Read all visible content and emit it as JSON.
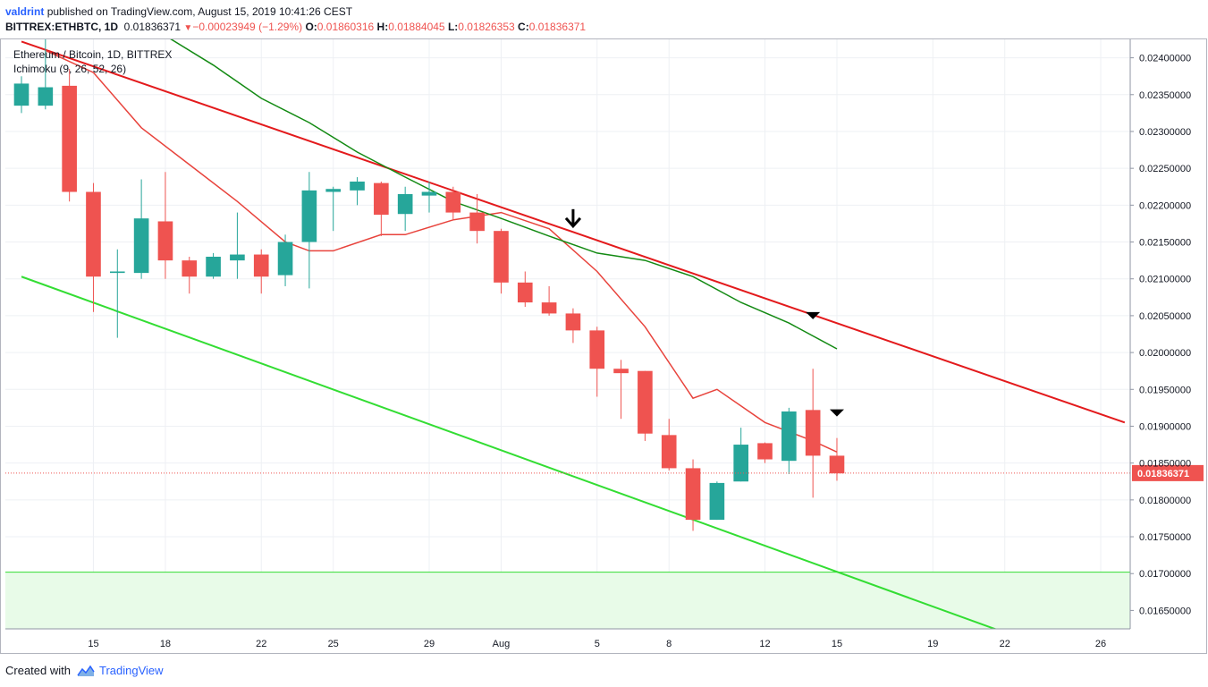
{
  "header": {
    "author": "valdrint",
    "published_text": "published on TradingView.com, August 15, 2019 10:41:26 CEST"
  },
  "symbol_line": {
    "symbol": "BITTREX:ETHBTC, 1D",
    "last": "0.01836371",
    "change": "−0.00023949 (−1.29%)",
    "o_label": "O:",
    "o_value": "0.01860316",
    "h_label": "H:",
    "h_value": "0.01884045",
    "l_label": "L:",
    "l_value": "0.01826353",
    "c_label": "C:",
    "c_value": "0.01836371"
  },
  "legend": {
    "title": "Ethereum / Bitcoin, 1D, BITTREX",
    "indicator": "Ichimoku (9, 26, 52, 26)"
  },
  "footer": {
    "created_with": "Created with",
    "brand": "TradingView"
  },
  "colors": {
    "up": "#26a69a",
    "down": "#ef5350",
    "resistance_line": "#e31a1c",
    "support_line": "#33dd33",
    "conversion_line": "#e8433c",
    "base_line": "#138a13",
    "support_zone": "#e8fbe8",
    "grid": "#eef0f4",
    "last_price_label": "#ef5350"
  },
  "chart_data": {
    "type": "candlestick",
    "title": "Ethereum / Bitcoin, 1D, BITTREX",
    "symbol": "BITTREX:ETHBTC",
    "interval": "1D",
    "ylim": [
      0.01625,
      0.02425
    ],
    "x_tick_labels": [
      "15",
      "18",
      "22",
      "25",
      "29",
      "Aug",
      "5",
      "8",
      "12",
      "15",
      "19",
      "22",
      "26"
    ],
    "y_tick_labels": [
      "0.02400000",
      "0.02350000",
      "0.02300000",
      "0.02250000",
      "0.02200000",
      "0.02150000",
      "0.02100000",
      "0.02050000",
      "0.02000000",
      "0.01950000",
      "0.01900000",
      "0.01850000",
      "0.01800000",
      "0.01750000",
      "0.01700000",
      "0.01650000"
    ],
    "last_price": 0.01836371,
    "last_price_label": "0.01836371",
    "grid": true,
    "x_range_dates": [
      "2019-07-12",
      "2019-08-27"
    ],
    "candles": [
      {
        "date": "2019-07-12",
        "o": 0.02335,
        "h": 0.02375,
        "l": 0.02325,
        "c": 0.02365
      },
      {
        "date": "2019-07-13",
        "o": 0.02335,
        "h": 0.0243,
        "l": 0.0233,
        "c": 0.0236
      },
      {
        "date": "2019-07-14",
        "o": 0.02362,
        "h": 0.02385,
        "l": 0.02205,
        "c": 0.02218
      },
      {
        "date": "2019-07-15",
        "o": 0.02218,
        "h": 0.0223,
        "l": 0.02055,
        "c": 0.02103
      },
      {
        "date": "2019-07-16",
        "o": 0.02108,
        "h": 0.0214,
        "l": 0.0202,
        "c": 0.0211
      },
      {
        "date": "2019-07-17",
        "o": 0.02108,
        "h": 0.02235,
        "l": 0.021,
        "c": 0.02182
      },
      {
        "date": "2019-07-18",
        "o": 0.02178,
        "h": 0.02245,
        "l": 0.021,
        "c": 0.02125
      },
      {
        "date": "2019-07-19",
        "o": 0.02125,
        "h": 0.0213,
        "l": 0.0208,
        "c": 0.02103
      },
      {
        "date": "2019-07-20",
        "o": 0.02103,
        "h": 0.02135,
        "l": 0.021,
        "c": 0.0213
      },
      {
        "date": "2019-07-21",
        "o": 0.02125,
        "h": 0.0219,
        "l": 0.021,
        "c": 0.02133
      },
      {
        "date": "2019-07-22",
        "o": 0.02133,
        "h": 0.0214,
        "l": 0.0208,
        "c": 0.02103
      },
      {
        "date": "2019-07-23",
        "o": 0.02105,
        "h": 0.0216,
        "l": 0.0209,
        "c": 0.0215
      },
      {
        "date": "2019-07-24",
        "o": 0.0215,
        "h": 0.02245,
        "l": 0.02087,
        "c": 0.0222
      },
      {
        "date": "2019-07-25",
        "o": 0.02218,
        "h": 0.02225,
        "l": 0.02165,
        "c": 0.02222
      },
      {
        "date": "2019-07-26",
        "o": 0.0222,
        "h": 0.02238,
        "l": 0.022,
        "c": 0.02232
      },
      {
        "date": "2019-07-27",
        "o": 0.0223,
        "h": 0.02232,
        "l": 0.02158,
        "c": 0.02187
      },
      {
        "date": "2019-07-28",
        "o": 0.02188,
        "h": 0.02225,
        "l": 0.02165,
        "c": 0.02215
      },
      {
        "date": "2019-07-29",
        "o": 0.02213,
        "h": 0.02232,
        "l": 0.0219,
        "c": 0.02218
      },
      {
        "date": "2019-07-30",
        "o": 0.02218,
        "h": 0.02225,
        "l": 0.0218,
        "c": 0.0219
      },
      {
        "date": "2019-07-31",
        "o": 0.0219,
        "h": 0.02215,
        "l": 0.02148,
        "c": 0.02165
      },
      {
        "date": "2019-08-01",
        "o": 0.02165,
        "h": 0.02168,
        "l": 0.0208,
        "c": 0.02095
      },
      {
        "date": "2019-08-02",
        "o": 0.02095,
        "h": 0.0211,
        "l": 0.02062,
        "c": 0.02068
      },
      {
        "date": "2019-08-03",
        "o": 0.02068,
        "h": 0.0209,
        "l": 0.0205,
        "c": 0.02053
      },
      {
        "date": "2019-08-04",
        "o": 0.02053,
        "h": 0.0206,
        "l": 0.02013,
        "c": 0.0203
      },
      {
        "date": "2019-08-05",
        "o": 0.0203,
        "h": 0.02035,
        "l": 0.0194,
        "c": 0.01978
      },
      {
        "date": "2019-08-06",
        "o": 0.01978,
        "h": 0.0199,
        "l": 0.0191,
        "c": 0.01972
      },
      {
        "date": "2019-08-07",
        "o": 0.01975,
        "h": 0.01975,
        "l": 0.0188,
        "c": 0.0189
      },
      {
        "date": "2019-08-08",
        "o": 0.01888,
        "h": 0.0191,
        "l": 0.0184,
        "c": 0.01843
      },
      {
        "date": "2019-08-09",
        "o": 0.01843,
        "h": 0.01855,
        "l": 0.01758,
        "c": 0.01773
      },
      {
        "date": "2019-08-10",
        "o": 0.01773,
        "h": 0.01825,
        "l": 0.01773,
        "c": 0.01823
      },
      {
        "date": "2019-08-11",
        "o": 0.01825,
        "h": 0.01898,
        "l": 0.01825,
        "c": 0.01875
      },
      {
        "date": "2019-08-12",
        "o": 0.01877,
        "h": 0.01878,
        "l": 0.0185,
        "c": 0.01855
      },
      {
        "date": "2019-08-13",
        "o": 0.01853,
        "h": 0.01925,
        "l": 0.01835,
        "c": 0.0192
      },
      {
        "date": "2019-08-14",
        "o": 0.01922,
        "h": 0.01978,
        "l": 0.01803,
        "c": 0.0186
      },
      {
        "date": "2019-08-15",
        "o": 0.0186,
        "h": 0.01884,
        "l": 0.01826,
        "c": 0.01836
      }
    ],
    "ichimoku_conversion": [
      {
        "date": "2019-07-13",
        "v": 0.0241
      },
      {
        "date": "2019-07-15",
        "v": 0.0238
      },
      {
        "date": "2019-07-17",
        "v": 0.02305
      },
      {
        "date": "2019-07-19",
        "v": 0.02255
      },
      {
        "date": "2019-07-21",
        "v": 0.02205
      },
      {
        "date": "2019-07-23",
        "v": 0.0215
      },
      {
        "date": "2019-07-24",
        "v": 0.02138
      },
      {
        "date": "2019-07-25",
        "v": 0.02138
      },
      {
        "date": "2019-07-27",
        "v": 0.0216
      },
      {
        "date": "2019-07-28",
        "v": 0.0216
      },
      {
        "date": "2019-07-30",
        "v": 0.0218
      },
      {
        "date": "2019-08-01",
        "v": 0.0219
      },
      {
        "date": "2019-08-03",
        "v": 0.02168
      },
      {
        "date": "2019-08-05",
        "v": 0.0211
      },
      {
        "date": "2019-08-07",
        "v": 0.02035
      },
      {
        "date": "2019-08-09",
        "v": 0.01938
      },
      {
        "date": "2019-08-10",
        "v": 0.0195
      },
      {
        "date": "2019-08-12",
        "v": 0.01905
      },
      {
        "date": "2019-08-14",
        "v": 0.0188
      },
      {
        "date": "2019-08-15",
        "v": 0.01865
      }
    ],
    "ichimoku_base": [
      {
        "date": "2019-07-18",
        "v": 0.0243
      },
      {
        "date": "2019-07-20",
        "v": 0.0239
      },
      {
        "date": "2019-07-22",
        "v": 0.02345
      },
      {
        "date": "2019-07-24",
        "v": 0.02312
      },
      {
        "date": "2019-07-26",
        "v": 0.02272
      },
      {
        "date": "2019-07-28",
        "v": 0.02238
      },
      {
        "date": "2019-07-30",
        "v": 0.02205
      },
      {
        "date": "2019-08-01",
        "v": 0.02182
      },
      {
        "date": "2019-08-03",
        "v": 0.02158
      },
      {
        "date": "2019-08-05",
        "v": 0.02135
      },
      {
        "date": "2019-08-07",
        "v": 0.02125
      },
      {
        "date": "2019-08-09",
        "v": 0.02103
      },
      {
        "date": "2019-08-11",
        "v": 0.02068
      },
      {
        "date": "2019-08-13",
        "v": 0.0204
      },
      {
        "date": "2019-08-15",
        "v": 0.02005
      }
    ],
    "resistance_line": [
      {
        "date": "2019-07-12",
        "v": 0.02422
      },
      {
        "date": "2019-08-27",
        "v": 0.01905
      }
    ],
    "support_line": [
      {
        "date": "2019-07-12",
        "v": 0.02103
      },
      {
        "date": "2019-08-22",
        "v": 0.0162
      }
    ],
    "support_zone": {
      "from": 0.01625,
      "to": 0.01702
    },
    "markers": [
      {
        "date": "2019-08-04",
        "value": 0.0218,
        "shape": "down-arrow"
      },
      {
        "date": "2019-08-14",
        "value": 0.0205,
        "shape": "down-triangle"
      },
      {
        "date": "2019-08-15",
        "value": 0.01918,
        "shape": "down-triangle"
      }
    ]
  }
}
